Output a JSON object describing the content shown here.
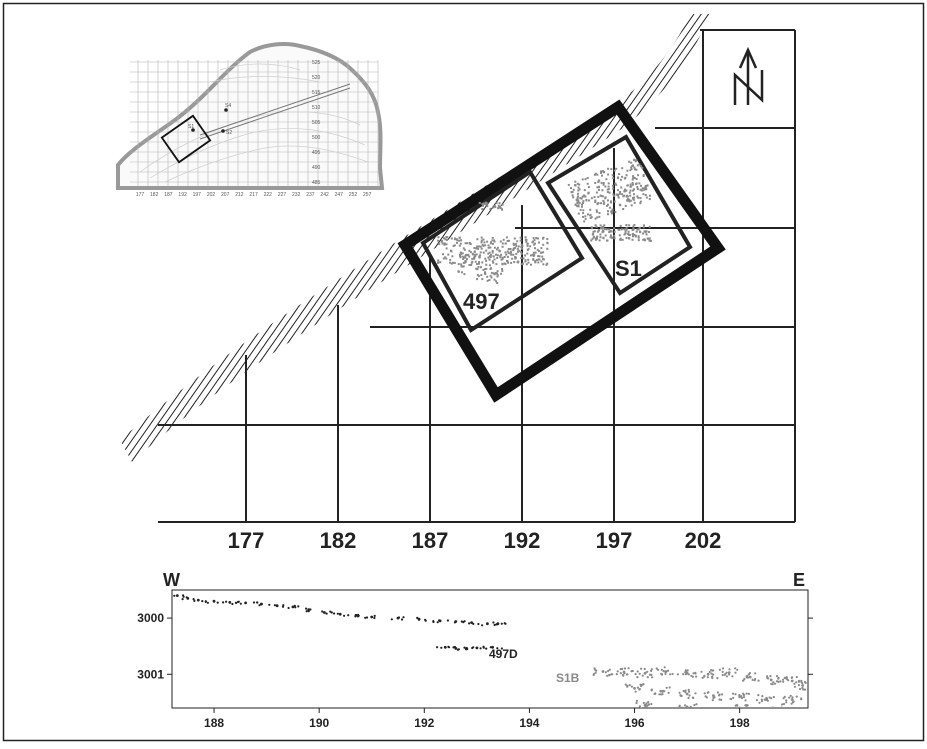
{
  "map": {
    "grid_x_labels": [
      "177",
      "182",
      "187",
      "192",
      "197",
      "202"
    ],
    "site_labels": {
      "site497": "497",
      "siteS1": "S1"
    },
    "north_arrow_letter": "N",
    "north_icon": "north-arrow-icon"
  },
  "inset": {
    "contour_labels": [
      "525",
      "520",
      "515",
      "510",
      "505",
      "500",
      "495",
      "490",
      "485"
    ],
    "x_labels": [
      "177",
      "182",
      "187",
      "192",
      "197",
      "202",
      "207",
      "212",
      "217",
      "222",
      "227",
      "232",
      "237",
      "242",
      "247",
      "252",
      "257"
    ],
    "markers": [
      "S4",
      "S2",
      "S1"
    ]
  },
  "profile": {
    "left_label": "W",
    "right_label": "E",
    "y_ticks": [
      "3000",
      "3001"
    ],
    "x_ticks": [
      "188",
      "190",
      "192",
      "194",
      "196",
      "198"
    ],
    "cluster_labels": {
      "c497D": "497D",
      "cS1B": "S1B"
    },
    "colors": {
      "dark_points": "#222222",
      "light_points": "#8a8a8a"
    }
  },
  "chart_data": {
    "type": "scatter",
    "x_range": [
      187.2,
      199.3
    ],
    "y_range": [
      2999.5,
      3001.6
    ],
    "y_inverted": true,
    "x_ticks": [
      188,
      190,
      192,
      194,
      196,
      198
    ],
    "y_ticks": [
      3000,
      3001
    ],
    "series": [
      {
        "name": "497D",
        "color": "#222222",
        "points": [
          [
            187.3,
            2999.6
          ],
          [
            187.5,
            2999.65
          ],
          [
            187.7,
            2999.68
          ],
          [
            188.0,
            2999.7
          ],
          [
            188.3,
            2999.72
          ],
          [
            188.6,
            2999.73
          ],
          [
            188.9,
            2999.75
          ],
          [
            189.2,
            2999.78
          ],
          [
            189.5,
            2999.8
          ],
          [
            189.8,
            2999.85
          ],
          [
            190.1,
            2999.9
          ],
          [
            190.4,
            2999.93
          ],
          [
            190.7,
            2999.95
          ],
          [
            191.0,
            2999.98
          ],
          [
            191.5,
            3000.0
          ],
          [
            191.9,
            3000.02
          ],
          [
            192.3,
            3000.05
          ],
          [
            192.6,
            3000.06
          ],
          [
            192.9,
            3000.08
          ],
          [
            193.2,
            3000.1
          ],
          [
            193.4,
            3000.1
          ],
          [
            192.4,
            3000.52
          ],
          [
            192.6,
            3000.54
          ],
          [
            192.8,
            3000.55
          ],
          [
            193.0,
            3000.53
          ],
          [
            193.3,
            3000.52
          ]
        ]
      },
      {
        "name": "S1B",
        "color": "#8a8a8a",
        "points": [
          [
            195.4,
            3000.95
          ],
          [
            195.8,
            3000.96
          ],
          [
            196.2,
            3000.98
          ],
          [
            196.6,
            3000.95
          ],
          [
            197.0,
            3000.98
          ],
          [
            197.4,
            3001.0
          ],
          [
            197.8,
            3000.97
          ],
          [
            198.2,
            3001.05
          ],
          [
            198.6,
            3001.1
          ],
          [
            199.0,
            3001.12
          ],
          [
            199.2,
            3001.2
          ],
          [
            196.0,
            3001.25
          ],
          [
            196.5,
            3001.3
          ],
          [
            197.0,
            3001.35
          ],
          [
            197.5,
            3001.38
          ],
          [
            198.0,
            3001.4
          ],
          [
            198.5,
            3001.45
          ],
          [
            199.0,
            3001.45
          ],
          [
            196.2,
            3001.55
          ],
          [
            197.0,
            3001.58
          ],
          [
            198.0,
            3001.6
          ],
          [
            198.8,
            3001.6
          ]
        ]
      }
    ]
  }
}
